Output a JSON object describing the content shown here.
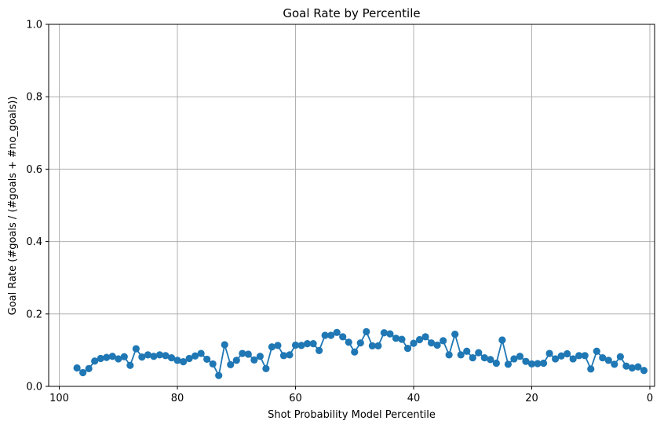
{
  "chart_data": {
    "type": "line",
    "title": "Goal Rate by Percentile",
    "xlabel": "Shot Probability Model Percentile",
    "ylabel": "Goal Rate (#goals / (#goals + #no_goals))",
    "xlim": [
      101.8,
      -0.8
    ],
    "ylim": [
      0,
      1
    ],
    "x_inverted": true,
    "grid": true,
    "marker": "circle",
    "x_ticks": [
      100,
      80,
      60,
      40,
      20,
      0
    ],
    "y_ticks": [
      0.0,
      0.2,
      0.4,
      0.6,
      0.8,
      1.0
    ],
    "x_tick_labels": [
      "100",
      "80",
      "60",
      "40",
      "20",
      "0"
    ],
    "y_tick_labels": [
      "0.0",
      "0.2",
      "0.4",
      "0.6",
      "0.8",
      "1.0"
    ],
    "colors": {
      "series": "#1f77b4",
      "grid": "#b0b0b0",
      "axes": "#000000"
    },
    "series": [
      {
        "x": [
          97,
          96,
          95,
          94,
          93,
          92,
          91,
          90,
          89,
          88,
          87,
          86,
          85,
          84,
          83,
          82,
          81,
          80,
          79,
          78,
          77,
          76,
          75,
          74,
          73,
          72,
          71,
          70,
          69,
          68,
          67,
          66,
          65,
          64,
          63,
          62,
          61,
          60,
          59,
          58,
          57,
          56,
          55,
          54,
          53,
          52,
          51,
          50,
          49,
          48,
          47,
          46,
          45,
          44,
          43,
          42,
          41,
          40,
          39,
          38,
          37,
          36,
          35,
          34,
          33,
          32,
          31,
          30,
          29,
          28,
          27,
          26,
          25,
          24,
          23,
          22,
          21,
          20,
          19,
          18,
          17,
          16,
          15,
          14,
          13,
          12,
          11,
          10,
          9,
          8,
          7,
          6,
          5,
          4,
          3,
          2,
          1
        ],
        "values": [
          0.051,
          0.038,
          0.049,
          0.07,
          0.077,
          0.08,
          0.083,
          0.076,
          0.082,
          0.058,
          0.104,
          0.081,
          0.087,
          0.083,
          0.087,
          0.085,
          0.079,
          0.072,
          0.068,
          0.077,
          0.084,
          0.091,
          0.075,
          0.062,
          0.03,
          0.115,
          0.06,
          0.072,
          0.091,
          0.089,
          0.073,
          0.083,
          0.049,
          0.109,
          0.113,
          0.085,
          0.087,
          0.114,
          0.113,
          0.118,
          0.118,
          0.099,
          0.141,
          0.141,
          0.149,
          0.137,
          0.122,
          0.095,
          0.12,
          0.151,
          0.112,
          0.112,
          0.148,
          0.145,
          0.133,
          0.13,
          0.105,
          0.119,
          0.129,
          0.137,
          0.12,
          0.114,
          0.126,
          0.087,
          0.144,
          0.087,
          0.097,
          0.079,
          0.093,
          0.079,
          0.074,
          0.064,
          0.128,
          0.061,
          0.076,
          0.083,
          0.069,
          0.062,
          0.063,
          0.064,
          0.091,
          0.076,
          0.084,
          0.09,
          0.076,
          0.085,
          0.085,
          0.048,
          0.097,
          0.079,
          0.072,
          0.061,
          0.082,
          0.056,
          0.051,
          0.054,
          0.044
        ]
      }
    ]
  }
}
